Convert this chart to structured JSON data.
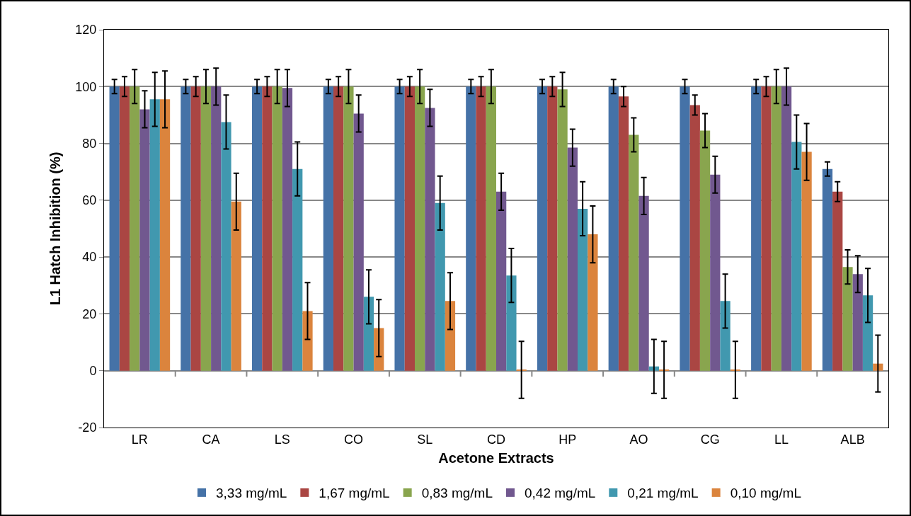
{
  "chart_data": {
    "type": "bar",
    "xlabel": "Acetone Extracts",
    "ylabel": "L1 Hatch Inhibition (%)",
    "categories": [
      "LR",
      "CA",
      "LS",
      "CO",
      "SL",
      "CD",
      "HP",
      "AO",
      "CG",
      "LL",
      "ALB"
    ],
    "series": [
      {
        "name": "3,33 mg/mL",
        "color": "#4572a7",
        "values": [
          100,
          100,
          100,
          100,
          100,
          100,
          100,
          100,
          100,
          100,
          71
        ],
        "errors": [
          2.5,
          2.5,
          2.5,
          2.5,
          2.5,
          2.5,
          2.5,
          2.5,
          2.5,
          2.5,
          2.5
        ]
      },
      {
        "name": "1,67 mg/mL",
        "color": "#aa4643",
        "values": [
          100,
          100,
          100,
          100,
          100,
          100,
          100,
          96.5,
          93.5,
          100,
          63
        ],
        "errors": [
          3.5,
          3.5,
          3.5,
          3.5,
          3.5,
          3.5,
          3.5,
          3.5,
          3.5,
          3.5,
          3.5
        ]
      },
      {
        "name": "0,83 mg/mL",
        "color": "#89a54e",
        "values": [
          100,
          100,
          100,
          100,
          100,
          100,
          99,
          83,
          84.5,
          100,
          36.5
        ],
        "errors": [
          6,
          6,
          6,
          6,
          6,
          6,
          6,
          6,
          6,
          6,
          6
        ]
      },
      {
        "name": "0,42 mg/mL",
        "color": "#71588f",
        "values": [
          92,
          100,
          99.5,
          90.5,
          92.5,
          63,
          78.5,
          61.5,
          69,
          100,
          34
        ],
        "errors": [
          6.5,
          6.5,
          6.5,
          6.5,
          6.5,
          6.5,
          6.5,
          6.5,
          6.5,
          6.5,
          6.5
        ]
      },
      {
        "name": "0,21 mg/mL",
        "color": "#4198af",
        "values": [
          95.5,
          87.5,
          71,
          26,
          59,
          33.5,
          57,
          1.5,
          24.5,
          80.5,
          26.5
        ],
        "errors": [
          9.5,
          9.5,
          9.5,
          9.5,
          9.5,
          9.5,
          9.5,
          9.5,
          9.5,
          9.5,
          9.5
        ]
      },
      {
        "name": "0,10 mg/mL",
        "color": "#db843d",
        "values": [
          95.5,
          59.5,
          21,
          15,
          24.5,
          0.3,
          48,
          0.3,
          0.3,
          77,
          2.5
        ],
        "errors": [
          10,
          10,
          10,
          10,
          10,
          10,
          10,
          10,
          10,
          10,
          10
        ]
      }
    ],
    "ylim": [
      -20,
      120
    ],
    "yticks": [
      -20,
      0,
      20,
      40,
      60,
      80,
      100,
      120
    ],
    "grid": "y",
    "legend": "bottom"
  }
}
